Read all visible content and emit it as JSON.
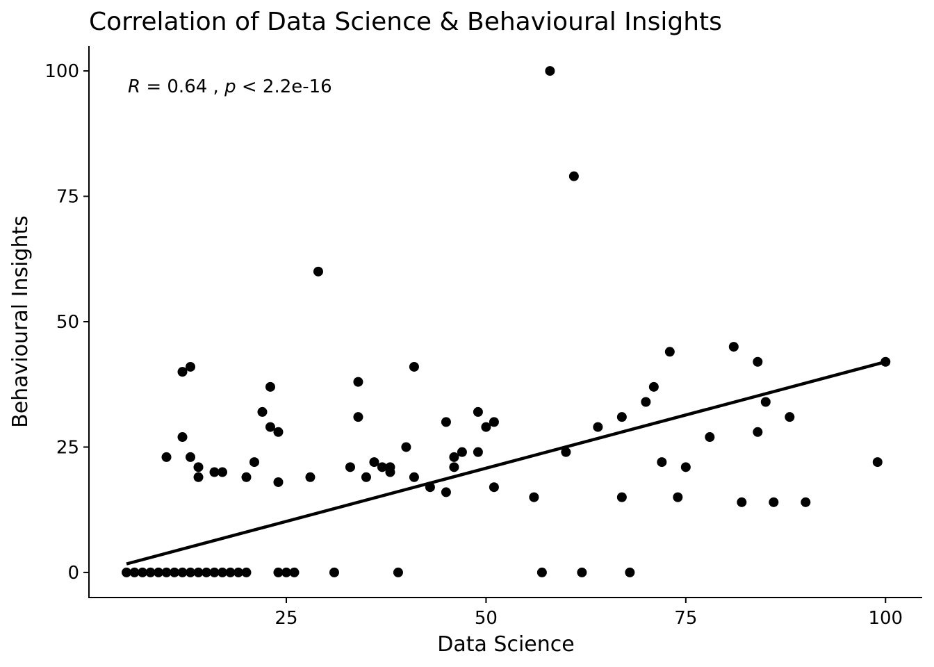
{
  "chart_data": {
    "type": "scatter",
    "title": "Correlation of Data Science & Behavioural Insights",
    "xlabel": "Data Science",
    "ylabel": "Behavioural Insights",
    "xlim": [
      0.3,
      104.5
    ],
    "ylim": [
      -5,
      105
    ],
    "xticks": [
      25,
      50,
      75,
      100
    ],
    "yticks": [
      0,
      25,
      50,
      75,
      100
    ],
    "xtick_labels": [
      "25",
      "50",
      "75",
      "100"
    ],
    "ytick_labels": [
      "0",
      "25",
      "50",
      "75",
      "100"
    ],
    "grid": false,
    "annotation": {
      "r_symbol": "R",
      "r_text": " = 0.64 , ",
      "p_symbol": "p",
      "p_text": " < 2.2e-16"
    },
    "trend_line": {
      "x": [
        5,
        100
      ],
      "y": [
        1.7,
        42
      ]
    },
    "points": [
      {
        "x": 5,
        "y": 0
      },
      {
        "x": 6,
        "y": 0
      },
      {
        "x": 7,
        "y": 0
      },
      {
        "x": 8,
        "y": 0
      },
      {
        "x": 9,
        "y": 0
      },
      {
        "x": 10,
        "y": 0
      },
      {
        "x": 11,
        "y": 0
      },
      {
        "x": 12,
        "y": 0
      },
      {
        "x": 13,
        "y": 0
      },
      {
        "x": 14,
        "y": 0
      },
      {
        "x": 15,
        "y": 0
      },
      {
        "x": 16,
        "y": 0
      },
      {
        "x": 17,
        "y": 0
      },
      {
        "x": 18,
        "y": 0
      },
      {
        "x": 19,
        "y": 0
      },
      {
        "x": 20,
        "y": 0
      },
      {
        "x": 24,
        "y": 0
      },
      {
        "x": 25,
        "y": 0
      },
      {
        "x": 26,
        "y": 0
      },
      {
        "x": 31,
        "y": 0
      },
      {
        "x": 39,
        "y": 0
      },
      {
        "x": 57,
        "y": 0
      },
      {
        "x": 62,
        "y": 0
      },
      {
        "x": 68,
        "y": 0
      },
      {
        "x": 10,
        "y": 23
      },
      {
        "x": 12,
        "y": 40
      },
      {
        "x": 12,
        "y": 27
      },
      {
        "x": 13,
        "y": 41
      },
      {
        "x": 13,
        "y": 23
      },
      {
        "x": 14,
        "y": 21
      },
      {
        "x": 14,
        "y": 19
      },
      {
        "x": 16,
        "y": 20
      },
      {
        "x": 17,
        "y": 20
      },
      {
        "x": 20,
        "y": 19
      },
      {
        "x": 21,
        "y": 22
      },
      {
        "x": 22,
        "y": 32
      },
      {
        "x": 23,
        "y": 37
      },
      {
        "x": 23,
        "y": 29
      },
      {
        "x": 24,
        "y": 28
      },
      {
        "x": 24,
        "y": 18
      },
      {
        "x": 28,
        "y": 19
      },
      {
        "x": 29,
        "y": 60
      },
      {
        "x": 33,
        "y": 21
      },
      {
        "x": 34,
        "y": 38
      },
      {
        "x": 34,
        "y": 31
      },
      {
        "x": 35,
        "y": 19
      },
      {
        "x": 36,
        "y": 22
      },
      {
        "x": 37,
        "y": 21
      },
      {
        "x": 38,
        "y": 21
      },
      {
        "x": 38,
        "y": 20
      },
      {
        "x": 40,
        "y": 25
      },
      {
        "x": 41,
        "y": 41
      },
      {
        "x": 41,
        "y": 19
      },
      {
        "x": 43,
        "y": 17
      },
      {
        "x": 45,
        "y": 30
      },
      {
        "x": 45,
        "y": 16
      },
      {
        "x": 46,
        "y": 23
      },
      {
        "x": 46,
        "y": 21
      },
      {
        "x": 47,
        "y": 24
      },
      {
        "x": 49,
        "y": 32
      },
      {
        "x": 49,
        "y": 24
      },
      {
        "x": 50,
        "y": 29
      },
      {
        "x": 51,
        "y": 30
      },
      {
        "x": 51,
        "y": 17
      },
      {
        "x": 56,
        "y": 15
      },
      {
        "x": 58,
        "y": 100
      },
      {
        "x": 60,
        "y": 24
      },
      {
        "x": 61,
        "y": 79
      },
      {
        "x": 64,
        "y": 29
      },
      {
        "x": 67,
        "y": 31
      },
      {
        "x": 67,
        "y": 15
      },
      {
        "x": 70,
        "y": 34
      },
      {
        "x": 71,
        "y": 37
      },
      {
        "x": 72,
        "y": 22
      },
      {
        "x": 73,
        "y": 44
      },
      {
        "x": 74,
        "y": 15
      },
      {
        "x": 75,
        "y": 21
      },
      {
        "x": 78,
        "y": 27
      },
      {
        "x": 81,
        "y": 45
      },
      {
        "x": 82,
        "y": 14
      },
      {
        "x": 84,
        "y": 42
      },
      {
        "x": 84,
        "y": 28
      },
      {
        "x": 85,
        "y": 34
      },
      {
        "x": 86,
        "y": 14
      },
      {
        "x": 88,
        "y": 31
      },
      {
        "x": 90,
        "y": 14
      },
      {
        "x": 99,
        "y": 22
      },
      {
        "x": 100,
        "y": 42
      }
    ]
  }
}
